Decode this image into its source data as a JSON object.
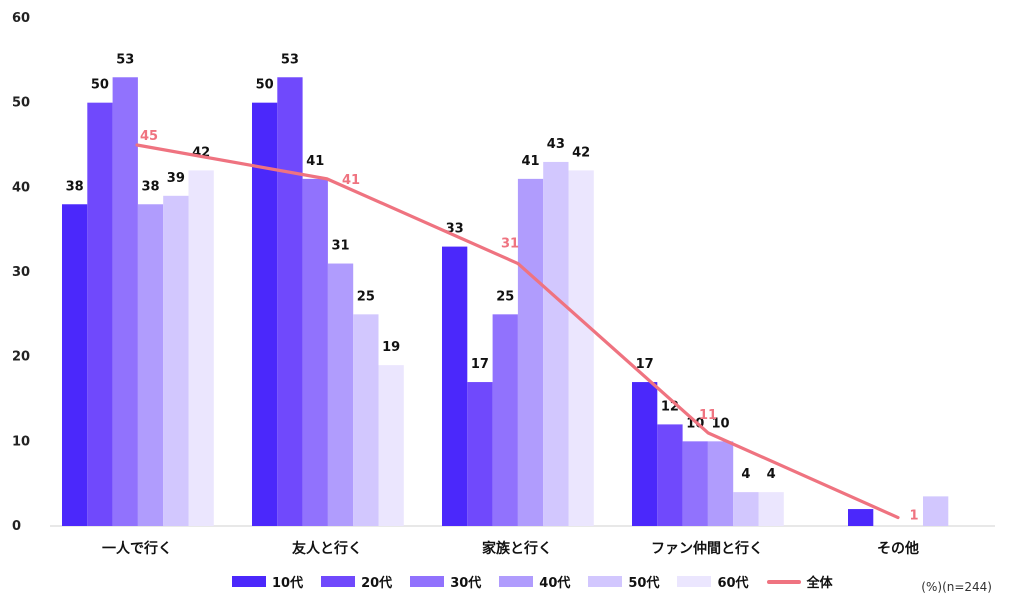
{
  "chart_data": {
    "type": "bar",
    "categories": [
      "一人で行く",
      "友人と行く",
      "家族と行く",
      "ファン仲間と行く",
      "その他"
    ],
    "series": [
      {
        "name": "10代",
        "color": "#4b28fb",
        "values": [
          38,
          50,
          33,
          17,
          2
        ],
        "labels": [
          "38",
          "50",
          "33",
          "17",
          ""
        ]
      },
      {
        "name": "20代",
        "color": "#7049fc",
        "values": [
          50,
          53,
          17,
          12,
          null
        ],
        "labels": [
          "50",
          "53",
          "17",
          "12",
          ""
        ]
      },
      {
        "name": "30代",
        "color": "#9172fd",
        "values": [
          53,
          41,
          25,
          10,
          null
        ],
        "labels": [
          "53",
          "41",
          "25",
          "10",
          ""
        ]
      },
      {
        "name": "40代",
        "color": "#b09cfd",
        "values": [
          38,
          31,
          41,
          10,
          null
        ],
        "labels": [
          "38",
          "31",
          "41",
          "10",
          ""
        ]
      },
      {
        "name": "50代",
        "color": "#d2c7fe",
        "values": [
          39,
          25,
          43,
          4,
          3.5
        ],
        "labels": [
          "39",
          "25",
          "43",
          "4",
          ""
        ]
      },
      {
        "name": "60代",
        "color": "#ebe6fe",
        "values": [
          42,
          19,
          42,
          4,
          null
        ],
        "labels": [
          "42",
          "19",
          "42",
          "4",
          ""
        ]
      }
    ],
    "line_series": {
      "name": "全体",
      "color": "#ef7380",
      "values": [
        45,
        41,
        31,
        11,
        1
      ],
      "labels": [
        "45",
        "41",
        "31",
        "11",
        "1"
      ]
    },
    "yticks": [
      "0",
      "10",
      "20",
      "30",
      "40",
      "50",
      "60"
    ],
    "ylim": [
      0,
      60
    ],
    "legend_position": "bottom",
    "note": "(%)(n=244)"
  }
}
